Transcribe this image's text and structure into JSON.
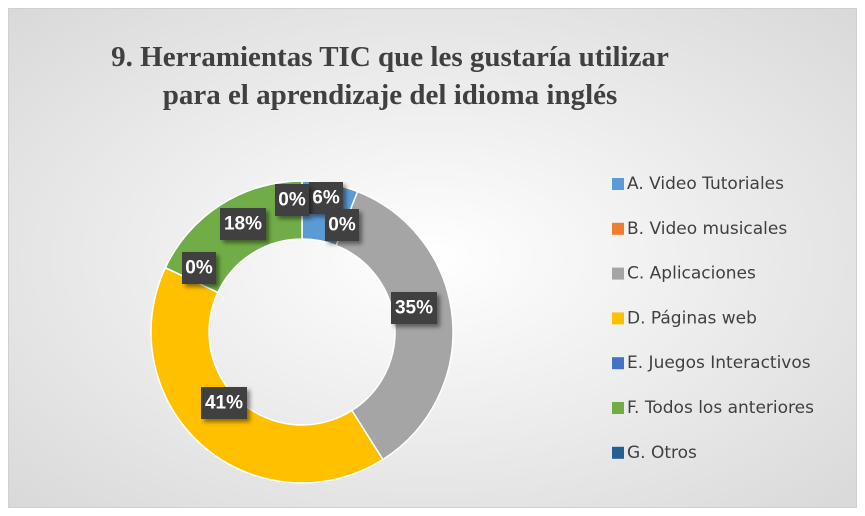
{
  "chart_data": {
    "type": "donut",
    "title": [
      "9. Herramientas TIC que les gustaría utilizar",
      "para el aprendizaje del idioma inglés"
    ],
    "categories": [
      "A. Video Tutoriales",
      "B. Video musicales",
      "C. Aplicaciones",
      "D. Páginas web",
      "E. Juegos Interactivos",
      "F. Todos los anteriores",
      "G. Otros"
    ],
    "values": [
      6,
      0,
      35,
      41,
      0,
      18,
      0
    ],
    "value_labels": [
      "6%",
      "0%",
      "35%",
      "41%",
      "0%",
      "18%",
      "0%"
    ],
    "colors": [
      "#5b9bd5",
      "#ed7d31",
      "#a5a5a5",
      "#ffc000",
      "#4472c4",
      "#70ad47",
      "#255e91"
    ],
    "legend": "right"
  }
}
